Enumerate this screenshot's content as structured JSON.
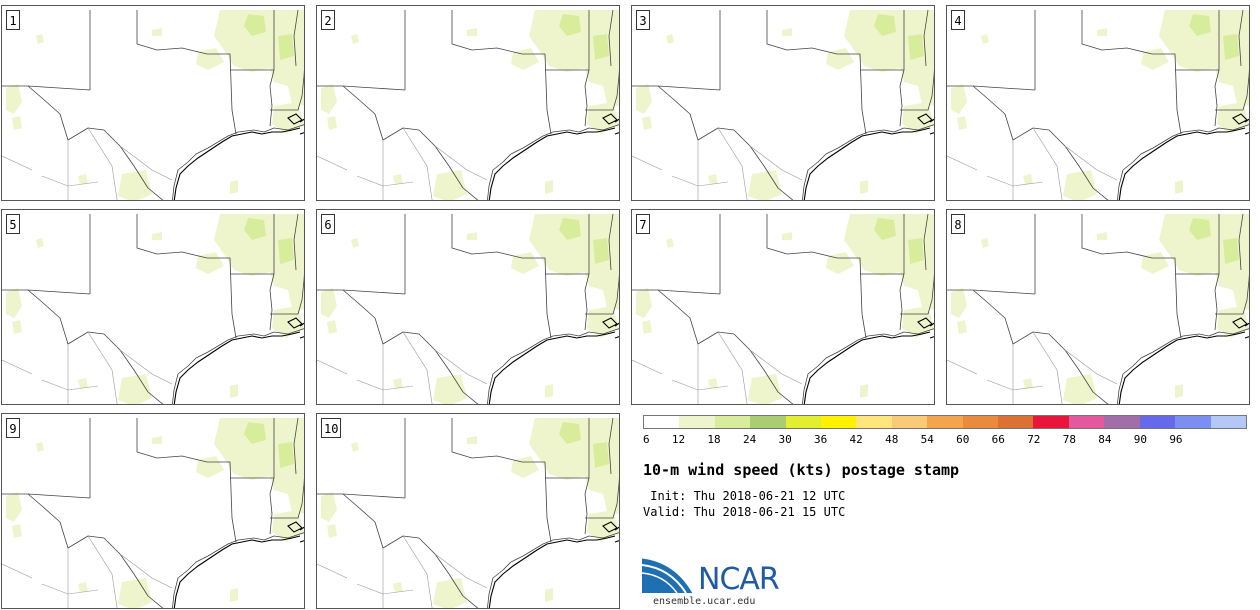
{
  "panels": [
    {
      "label": "1"
    },
    {
      "label": "2"
    },
    {
      "label": "3"
    },
    {
      "label": "4"
    },
    {
      "label": "5"
    },
    {
      "label": "6"
    },
    {
      "label": "7"
    },
    {
      "label": "8"
    },
    {
      "label": "9"
    },
    {
      "label": "10"
    }
  ],
  "colorbar": {
    "colors": [
      "#ffffff",
      "#eef5cc",
      "#d8ed9b",
      "#aacd72",
      "#e2ee30",
      "#fff100",
      "#ffe57c",
      "#f9cb78",
      "#f5a44e",
      "#e98a3c",
      "#dc7232",
      "#e9153b",
      "#e4589d",
      "#a26ea9",
      "#6669e9",
      "#7b8ff0",
      "#b4c8f8"
    ],
    "ticks": [
      "6",
      "12",
      "18",
      "24",
      "30",
      "36",
      "42",
      "48",
      "54",
      "60",
      "66",
      "72",
      "78",
      "84",
      "90",
      "96"
    ]
  },
  "title": "10-m wind speed (kts) postage stamp",
  "init": " Init: Thu 2018-06-21 12 UTC",
  "valid": "Valid: Thu 2018-06-21 15 UTC",
  "logo": {
    "text": "NCAR",
    "site": "ensemble.ucar.edu"
  }
}
